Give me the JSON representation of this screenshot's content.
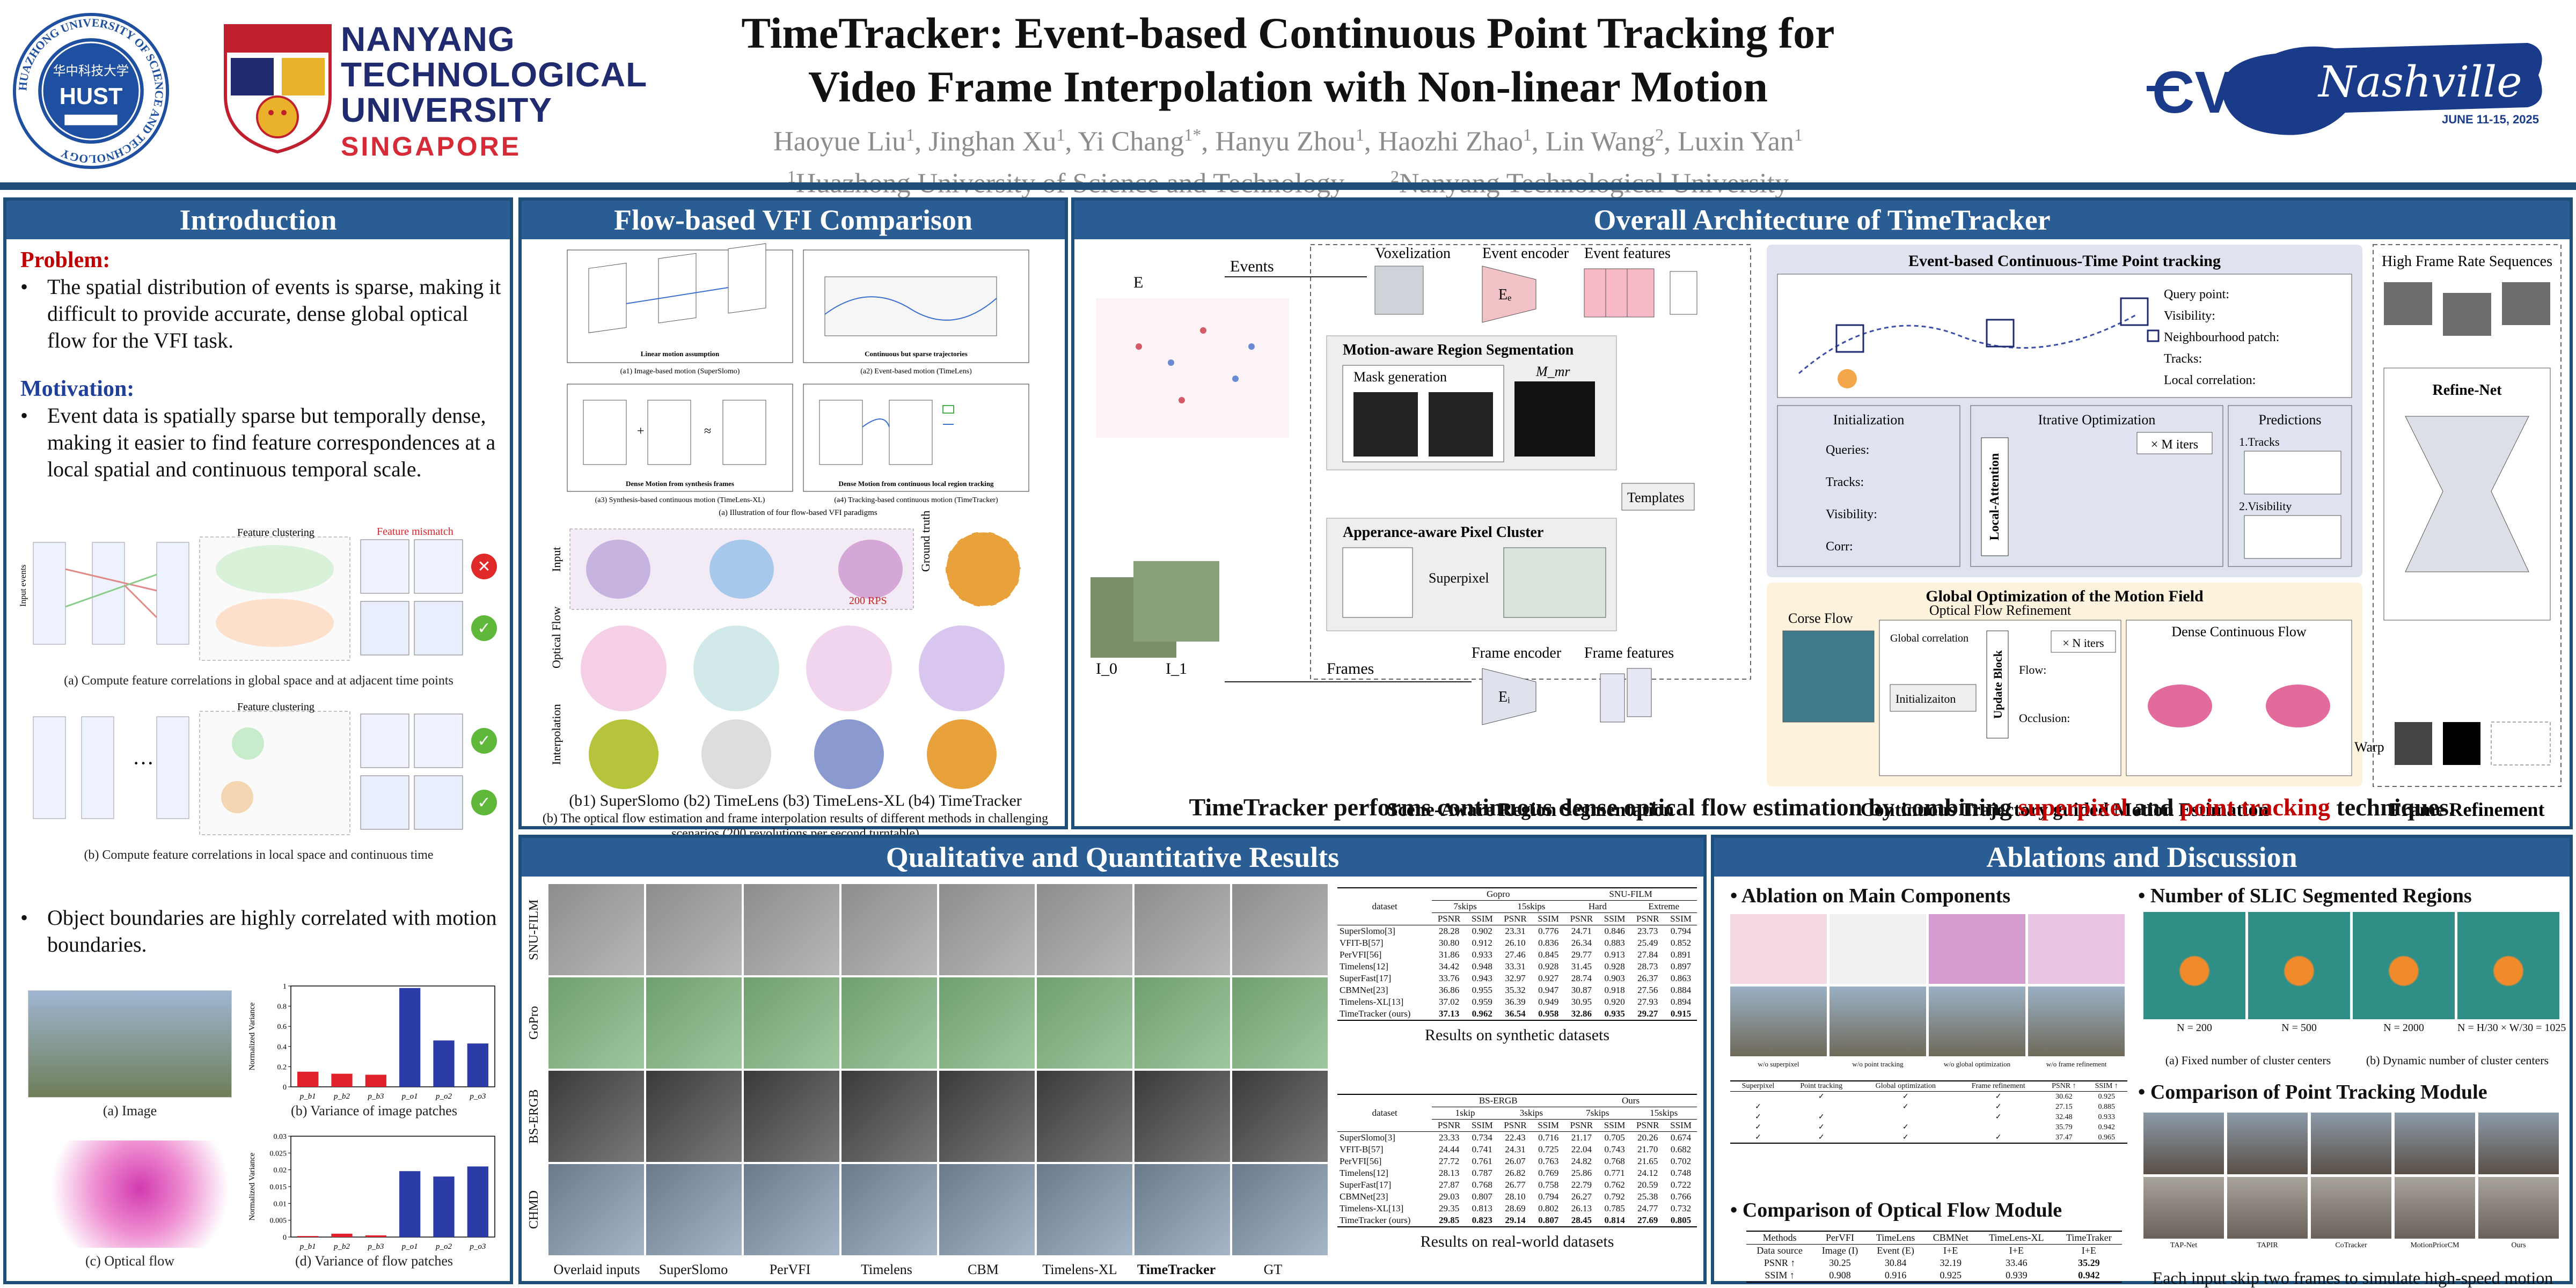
{
  "header": {
    "title_line1": "TimeTracker: Event-based Continuous Point Tracking for",
    "title_line2": "Video Frame Interpolation with Non-linear Motion",
    "authors": [
      {
        "name": "Haoyue Liu",
        "sup": "1"
      },
      {
        "name": "Jinghan Xu",
        "sup": "1"
      },
      {
        "name": "Yi Chang",
        "sup": "1*"
      },
      {
        "name": "Hanyu Zhou",
        "sup": "1"
      },
      {
        "name": "Haozhi Zhao",
        "sup": "1"
      },
      {
        "name": "Lin Wang",
        "sup": "2"
      },
      {
        "name": "Luxin Yan",
        "sup": "1"
      }
    ],
    "affil1_sup": "1",
    "affil1": "Huazhong University of Science and Technology",
    "affil2_sup": "2",
    "affil2": "Nanyang Technological University",
    "ntu_line1": "NANYANG",
    "ntu_line2": "TECHNOLOGICAL",
    "ntu_line3": "UNIVERSITY",
    "ntu_line4": "SINGAPORE",
    "hust_ring_text": "HUAZHONG UNIVERSITY OF SCIENCE AND TECHNOLOGY",
    "hust_cn": "华中科技大学",
    "hust_mark": "HUST",
    "cvpr_word": "CVPR",
    "cvpr_script": "Nashville",
    "cvpr_dates": "JUNE 11-15, 2025"
  },
  "intro": {
    "heading": "Introduction",
    "problem_label": "Problem:",
    "problem_text": "The spatial distribution of events is sparse, making it difficult to provide accurate, dense global optical flow for the VFI task.",
    "motivation_label": "Motivation:",
    "motivation_text": "Event data is spatially sparse but temporally dense, making it easier to find feature correspondences at a local spatial and continuous temporal scale.",
    "fig_a_feature_clustering": "Feature clustering",
    "fig_a_feature_mismatch": "Feature mismatch",
    "fig_a_input_events": "Input events",
    "fig_a_caption": "(a) Compute feature correlations in global space and at adjacent time points",
    "fig_b_feature_clustering": "Feature clustering",
    "fig_b_caption": "(b) Compute feature correlations in local space and continuous time",
    "boundary_text": "Object boundaries are highly correlated with motion boundaries.",
    "img_caption": "(a) Image",
    "var_img_caption": "(b) Variance of image patches",
    "flow_caption": "(c) Optical flow",
    "var_flow_caption": "(d) Variance of flow patches",
    "ylabel": "Normalized Variance",
    "patch_labels": [
      "p_b1",
      "p_b2",
      "p_b3",
      "p_o1",
      "p_o2",
      "p_o3"
    ]
  },
  "chart_data": [
    {
      "type": "bar",
      "title": "",
      "ylabel": "Normalized Variance",
      "categories": [
        "p_b1",
        "p_b2",
        "p_b3",
        "p_o1",
        "p_o2",
        "p_o3"
      ],
      "values": [
        0.15,
        0.13,
        0.12,
        0.98,
        0.46,
        0.43
      ],
      "colors": [
        "#e0202a",
        "#e0202a",
        "#e0202a",
        "#2b3ba8",
        "#2b3ba8",
        "#2b3ba8"
      ],
      "ylim": [
        0,
        1
      ],
      "yticks": [
        "0",
        "0.2",
        "0.4",
        "0.6",
        "0.8",
        "1"
      ]
    },
    {
      "type": "bar",
      "title": "",
      "ylabel": "Normalized Variance",
      "categories": [
        "p_b1",
        "p_b2",
        "p_b3",
        "p_o1",
        "p_o2",
        "p_o3"
      ],
      "values": [
        0.0003,
        0.001,
        0.0005,
        0.0196,
        0.018,
        0.021
      ],
      "colors": [
        "#e0202a",
        "#e0202a",
        "#e0202a",
        "#2b3ba8",
        "#2b3ba8",
        "#2b3ba8"
      ],
      "ylim": [
        0,
        0.03
      ],
      "yticks": [
        "0",
        "0.005",
        "0.01",
        "0.015",
        "0.02",
        "0.025",
        "0.03"
      ]
    }
  ],
  "flow": {
    "heading": "Flow-based VFI Comparison",
    "a1": "(a1) Image-based motion (SuperSlomo)",
    "a2": "(a2) Event-based motion (TimeLens)",
    "a3": "(a3) Synthesis-based continuous motion (TimeLens-XL)",
    "a4": "(a4) Tracking-based continuous motion (TimeTracker)",
    "a_caption": "(a) Illustration of four flow-based VFI paradigms",
    "linear_motion": "Linear motion assumption",
    "sparse_traj": "Continuous but sparse trajectories",
    "dense_synth": "Dense Motion from synthesis frames",
    "dense_local": "Dense Motion from continuous local region tracking",
    "row_input": "Input",
    "row_flow": "Optical Flow",
    "row_interp": "Interpolation",
    "ground_truth": "Ground truth",
    "rps": "200 RPS",
    "b_labels": "(b1) SuperSlomo   (b2) TimeLens   (b3) TimeLens-XL  (b4) TimeTracker",
    "b_caption": "(b) The optical flow estimation and frame interpolation results of different methods in challenging scenarios (200 revolutions per second turntable)"
  },
  "arch": {
    "heading": "Overall Architecture of TimeTracker",
    "events": "Events",
    "voxelization": "Voxelization",
    "event_encoder": "Event encoder",
    "event_features": "Event features",
    "e_sym": "E",
    "motion_seg": "Motion-aware Region Segmentation",
    "mask_gen": "Mask generation",
    "mmr": "M_mr",
    "templates": "Templates",
    "appearance": "Apperance-aware Pixel Cluster",
    "superpixel": "Superpixel",
    "frames": "Frames",
    "frame_encoder": "Frame encoder",
    "frame_features": "Frame features",
    "i0": "I_0",
    "i1": "I_1",
    "scene_label": "Scene-Aware Region Segmentation",
    "ect_head": "Event-based Continuous-Time Point tracking",
    "legend_query": "Query point:",
    "legend_visibility": "Visibility:",
    "legend_patch": "Neighbourhood patch:",
    "legend_tracks": "Tracks:",
    "legend_corr": "Local correlation:",
    "init": "Initialization",
    "queries": "Queries:",
    "tracks": "Tracks:",
    "visibility": "Visibility:",
    "corr": "Corr:",
    "iter_opt": "Itrative Optimization",
    "m_iters": "× M iters",
    "local_attn": "Local-Attention",
    "predictions": "Predictions",
    "pred_tracks": "1.Tracks",
    "pred_vis": "2.Visibility",
    "global_opt": "Global Optimization of the Motion Field",
    "corse_flow": "Corse Flow",
    "ofr": "Optical Flow Refinement",
    "global_corr": "Global correlation",
    "initializaiton": "Initializaiton",
    "update_block": "Update Block",
    "n_iters": "× N iters",
    "flow_lbl": "Flow:",
    "occlusion": "Occlusion:",
    "dense_flow": "Dense Continuous Flow",
    "ctg_label": "Continuous Trajectory guided Motion Estimation",
    "hfr": "High Frame Rate Sequences",
    "refine_net": "Refine-Net",
    "warp": "Warp",
    "frame_ref": "Frame Refinement",
    "summary_pre": "TimeTracker performs continuous dense optical flow estimation by combining ",
    "summary_sp": "superpixel",
    "summary_mid": " and ",
    "summary_pt": "point tracking",
    "summary_post": " techniques."
  },
  "results": {
    "heading": "Qualitative and Quantitative Results",
    "row_labels": [
      "SNU-FILM",
      "GoPro",
      "BS-ERGB",
      "CHMD"
    ],
    "col_labels": [
      "Overlaid inputs",
      "SuperSlomo",
      "PerVFI",
      "Timelens",
      "CBM",
      "Timelens-XL",
      "TimeTracker",
      "GT"
    ],
    "syn_caption": "Results on synthetic datasets",
    "real_caption": "Results on real-world datasets",
    "syn_groups": [
      "Gopro",
      "SNU-FILM"
    ],
    "syn_sub": [
      "7skips",
      "15skips",
      "Hard",
      "Extreme"
    ],
    "real_groups": [
      "BS-ERGB",
      "Ours"
    ],
    "real_sub": [
      "1skip",
      "3skips",
      "7skips",
      "15skips"
    ],
    "metric_psnr": "PSNR",
    "metric_ssim": "SSIM",
    "dataset_lbl": "dataset",
    "syn_rows": [
      {
        "m": "SuperSlomo[3]",
        "v": [
          "28.28",
          "0.902",
          "23.31",
          "0.776",
          "24.71",
          "0.846",
          "23.73",
          "0.794"
        ]
      },
      {
        "m": "VFIT-B[57]",
        "v": [
          "30.80",
          "0.912",
          "26.10",
          "0.836",
          "26.34",
          "0.883",
          "25.49",
          "0.852"
        ]
      },
      {
        "m": "PerVFI[56]",
        "v": [
          "31.86",
          "0.933",
          "27.46",
          "0.845",
          "29.77",
          "0.913",
          "27.84",
          "0.891"
        ]
      },
      {
        "m": "Timelens[12]",
        "v": [
          "34.42",
          "0.948",
          "33.31",
          "0.928",
          "31.45",
          "0.928",
          "28.73",
          "0.897"
        ]
      },
      {
        "m": "SuperFast[17]",
        "v": [
          "33.76",
          "0.943",
          "32.97",
          "0.927",
          "28.74",
          "0.903",
          "26.37",
          "0.863"
        ]
      },
      {
        "m": "CBMNet[23]",
        "v": [
          "36.86",
          "0.955",
          "35.32",
          "0.947",
          "30.87",
          "0.918",
          "27.56",
          "0.884"
        ]
      },
      {
        "m": "Timelens-XL[13]",
        "v": [
          "37.02",
          "0.959",
          "36.39",
          "0.949",
          "30.95",
          "0.920",
          "27.93",
          "0.894"
        ]
      },
      {
        "m": "TimeTracker (ours)",
        "v": [
          "37.13",
          "0.962",
          "36.54",
          "0.958",
          "32.86",
          "0.935",
          "29.27",
          "0.915"
        ]
      }
    ],
    "real_rows": [
      {
        "m": "SuperSlomo[3]",
        "v": [
          "23.33",
          "0.734",
          "22.43",
          "0.716",
          "21.17",
          "0.705",
          "20.26",
          "0.674"
        ]
      },
      {
        "m": "VFIT-B[57]",
        "v": [
          "24.44",
          "0.741",
          "24.31",
          "0.725",
          "22.04",
          "0.743",
          "21.70",
          "0.682"
        ]
      },
      {
        "m": "PerVFI[56]",
        "v": [
          "27.72",
          "0.761",
          "26.07",
          "0.763",
          "24.82",
          "0.768",
          "21.65",
          "0.702"
        ]
      },
      {
        "m": "Timelens[12]",
        "v": [
          "28.13",
          "0.787",
          "26.82",
          "0.769",
          "25.86",
          "0.771",
          "24.12",
          "0.748"
        ]
      },
      {
        "m": "SuperFast[17]",
        "v": [
          "27.87",
          "0.768",
          "26.77",
          "0.758",
          "22.79",
          "0.762",
          "20.59",
          "0.722"
        ]
      },
      {
        "m": "CBMNet[23]",
        "v": [
          "29.03",
          "0.807",
          "28.10",
          "0.794",
          "26.27",
          "0.792",
          "25.38",
          "0.766"
        ]
      },
      {
        "m": "Timelens-XL[13]",
        "v": [
          "29.35",
          "0.813",
          "28.69",
          "0.802",
          "26.13",
          "0.785",
          "24.77",
          "0.732"
        ]
      },
      {
        "m": "TimeTracker (ours)",
        "v": [
          "29.85",
          "0.823",
          "29.14",
          "0.807",
          "28.45",
          "0.814",
          "27.69",
          "0.805"
        ]
      }
    ]
  },
  "ablation": {
    "heading": "Ablations and Discussion",
    "main_head": "Ablation on Main Components",
    "img_labels": [
      "w/o superpixel",
      "w/o point tracking",
      "w/o global optimization",
      "w/o frame refinement"
    ],
    "abl_cols": [
      "Superpixel",
      "Point tracking",
      "Global optimization",
      "Frame refinement",
      "PSNR ↑",
      "SSIM ↑"
    ],
    "abl_rows": [
      {
        "c": [
          "",
          "✓",
          "✓",
          "✓"
        ],
        "psnr": "30.62",
        "ssim": "0.925"
      },
      {
        "c": [
          "✓",
          "",
          "✓",
          "✓"
        ],
        "psnr": "27.15",
        "ssim": "0.885"
      },
      {
        "c": [
          "✓",
          "✓",
          "",
          "✓"
        ],
        "psnr": "32.48",
        "ssim": "0.933"
      },
      {
        "c": [
          "✓",
          "✓",
          "✓",
          ""
        ],
        "psnr": "35.79",
        "ssim": "0.942"
      },
      {
        "c": [
          "✓",
          "✓",
          "✓",
          "✓"
        ],
        "psnr": "37.47",
        "ssim": "0.965"
      }
    ],
    "of_head": "Comparison of Optical Flow Module",
    "of_cols": [
      "Methods",
      "PerVFI",
      "TimeLens",
      "CBMNet",
      "TimeLens-XL",
      "TimeTraker"
    ],
    "of_rows": [
      [
        "Data source",
        "Image (I)",
        "Event (E)",
        "I+E",
        "I+E",
        "I+E"
      ],
      [
        "PSNR ↑",
        "30.25",
        "30.84",
        "32.19",
        "33.46",
        "35.29"
      ],
      [
        "SSIM ↑",
        "0.908",
        "0.916",
        "0.925",
        "0.939",
        "0.942"
      ]
    ],
    "slic_head": "Number of SLIC Segmented Regions",
    "slic_n": [
      "N = 200",
      "N = 500",
      "N = 2000",
      "N = H/30 × W/30 = 1025"
    ],
    "slic_cap_a": "(a) Fixed number of cluster centers",
    "slic_cap_b": "(b) Dynamic number of cluster centers",
    "pt_head": "Comparison of Point Tracking Module",
    "pt_methods": [
      "TAP-Net",
      "TAPIR",
      "CoTracker",
      "MotionPriorCM",
      "Ours"
    ],
    "pt_caption": "Each input skip two frames to simulate high-speed motion"
  },
  "colors": {
    "panel_blue": "#2a5d94",
    "border_blue": "#1f4e79",
    "accent_red": "#c00000"
  }
}
